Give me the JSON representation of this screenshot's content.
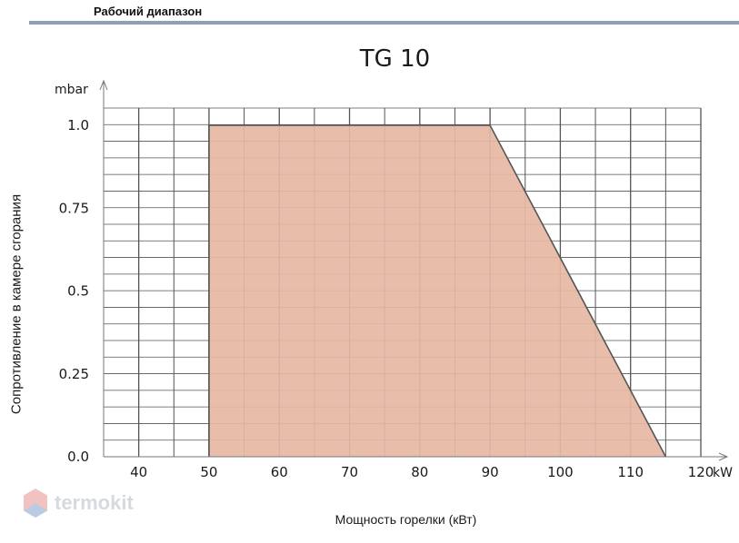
{
  "header": {
    "title": "Рабочий диапазон"
  },
  "watermark": {
    "text": "termokit"
  },
  "chart_data": {
    "type": "area",
    "title": "TG 10",
    "xlabel": "Мощность горелки (кВт)",
    "ylabel": "Сопротивление в камере сгорания",
    "x_unit": "kW",
    "y_unit": "mbar",
    "xlim": [
      35,
      120
    ],
    "ylim": [
      0,
      1.0
    ],
    "x_ticks": [
      "40",
      "50",
      "60",
      "70",
      "80",
      "90",
      "100",
      "110",
      "120"
    ],
    "y_ticks": [
      "0.0",
      "0.25",
      "0.5",
      "0.75",
      "1.0"
    ],
    "grid": true,
    "region": {
      "name": "",
      "points": [
        [
          50,
          0
        ],
        [
          50,
          1.0
        ],
        [
          90,
          1.0
        ],
        [
          115,
          0
        ]
      ]
    },
    "colors": {
      "fill": "#e6b8a4",
      "boundary": "#555555",
      "grid": "#555555"
    }
  }
}
